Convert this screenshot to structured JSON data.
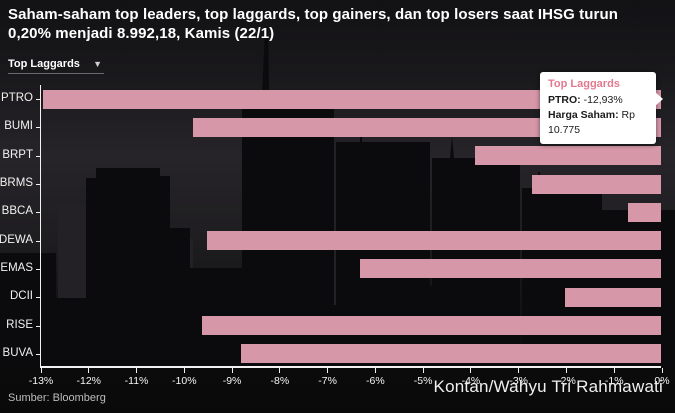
{
  "title": "Saham-saham top leaders, top laggards, top gainers, dan top losers saat IHSG turun 0,20% menjadi 8.992,18, Kamis (22/1)",
  "dropdown": {
    "selected": "Top Laggards"
  },
  "tooltip": {
    "title": "Top Laggards",
    "line1_label": "PTRO:",
    "line1_value": "-12,93%",
    "line2_label": "Harga Saham:",
    "line2_value": "Rp 10.775"
  },
  "source": "Sumber: Bloomberg",
  "credit": "Kontan/Wahyu Tri Rahmawati",
  "colors": {
    "bar": "#d697a8",
    "tooltip_accent": "#e2798f",
    "axis": "#f2f2f2",
    "background": "#131215"
  },
  "chart_data": {
    "type": "bar",
    "orientation": "horizontal",
    "title": "Top Laggards",
    "categories": [
      "PTRO",
      "BUMI",
      "BRPT",
      "BRMS",
      "BBCA",
      "DEWA",
      "EMAS",
      "DCII",
      "RISE",
      "BUVA"
    ],
    "values": [
      -12.93,
      -9.8,
      -3.9,
      -2.7,
      -0.7,
      -9.5,
      -6.3,
      -2.0,
      -9.6,
      -8.8
    ],
    "x_tick_labels": [
      "-13%",
      "-12%",
      "-11%",
      "-10%",
      "-9%",
      "-8%",
      "-7%",
      "-6%",
      "-5%",
      "-4%",
      "-3%",
      "-2%",
      "-1%",
      "0%"
    ],
    "xlim": [
      -13,
      0
    ],
    "grid": false,
    "legend": false,
    "highlighted": {
      "category": "PTRO",
      "value_label": "-12,93%",
      "harga_saham": "Rp 10.775"
    }
  }
}
